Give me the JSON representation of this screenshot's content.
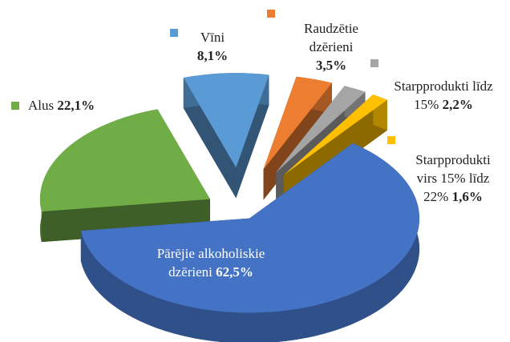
{
  "chart_data": {
    "type": "pie",
    "categories": [
      "Vīni",
      "Raudzētie dzērieni",
      "Starpprodukti līdz 15%",
      "Starpprodukti virs 15% līdz 22%",
      "Pārējie alkoholiskie dzērieni",
      "Alus"
    ],
    "values": [
      8.1,
      3.5,
      2.2,
      1.6,
      62.5,
      22.1
    ],
    "value_labels": [
      "8,1%",
      "3,5%",
      "2,2%",
      "1,6%",
      "62,5%",
      "22,1%"
    ],
    "colors": [
      "#5b9bd5",
      "#ed7d31",
      "#a5a5a5",
      "#ffc000",
      "#4472c4",
      "#70ad47"
    ]
  }
}
